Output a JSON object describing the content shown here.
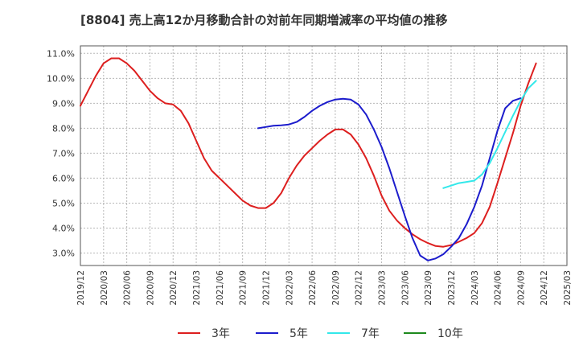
{
  "chart_data": {
    "type": "line",
    "title": "[8804]  売上高12か月移動合計の対前年同期増減率の平均値の推移",
    "xlabel": "",
    "ylabel": "",
    "x_ticks": [
      "2019/12",
      "2020/03",
      "2020/06",
      "2020/09",
      "2020/12",
      "2021/03",
      "2021/06",
      "2021/09",
      "2021/12",
      "2022/03",
      "2022/06",
      "2022/09",
      "2022/12",
      "2023/03",
      "2023/06",
      "2023/09",
      "2023/12",
      "2024/03",
      "2024/06",
      "2024/09",
      "2024/12",
      "2025/03"
    ],
    "y_ticks": [
      "3.0%",
      "4.0%",
      "5.0%",
      "6.0%",
      "7.0%",
      "8.0%",
      "9.0%",
      "10.0%",
      "11.0%"
    ],
    "ylim": [
      2.5,
      11.3
    ],
    "x_range": [
      "2019/12",
      "2025/03"
    ],
    "grid": "horizontal dashed",
    "legend_position": "bottom",
    "series": [
      {
        "name": "3年",
        "color": "#dd1f1f",
        "start": "2019/12",
        "values": [
          8.9,
          9.5,
          10.1,
          10.6,
          10.8,
          10.8,
          10.6,
          10.3,
          9.9,
          9.5,
          9.2,
          9.0,
          8.95,
          8.7,
          8.2,
          7.5,
          6.8,
          6.3,
          6.0,
          5.7,
          5.4,
          5.1,
          4.9,
          4.8,
          4.8,
          5.0,
          5.4,
          6.0,
          6.5,
          6.9,
          7.2,
          7.5,
          7.75,
          7.95,
          7.95,
          7.75,
          7.35,
          6.8,
          6.1,
          5.3,
          4.7,
          4.3,
          4.0,
          3.75,
          3.55,
          3.4,
          3.28,
          3.25,
          3.32,
          3.45,
          3.6,
          3.8,
          4.2,
          4.85,
          5.8,
          6.8,
          7.8,
          8.9,
          9.8,
          10.6
        ]
      },
      {
        "name": "5年",
        "color": "#1c1ccc",
        "start": "2021/11",
        "values": [
          8.0,
          8.05,
          8.1,
          8.12,
          8.15,
          8.25,
          8.45,
          8.7,
          8.9,
          9.05,
          9.15,
          9.18,
          9.15,
          8.95,
          8.55,
          7.95,
          7.25,
          6.4,
          5.45,
          4.5,
          3.6,
          2.9,
          2.7,
          2.78,
          2.95,
          3.25,
          3.6,
          4.15,
          4.85,
          5.7,
          6.8,
          7.9,
          8.8,
          9.1,
          9.2
        ]
      },
      {
        "name": "7年",
        "color": "#33e8ea",
        "start": "2023/11",
        "values": [
          5.6,
          5.7,
          5.8,
          5.85,
          5.9,
          6.15,
          6.6,
          7.2,
          7.85,
          8.5,
          9.1,
          9.6,
          9.9
        ]
      },
      {
        "name": "10年",
        "color": "#1e8a1e",
        "start": "2024/12",
        "values": []
      }
    ]
  }
}
